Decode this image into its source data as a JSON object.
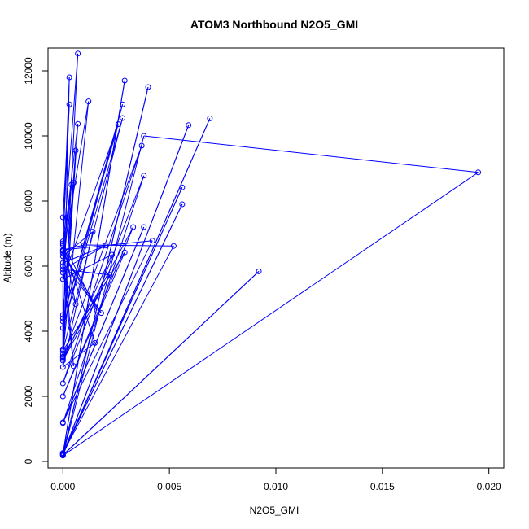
{
  "chart_data": {
    "type": "line",
    "title": "ATOM3 Northbound N2O5_GMI",
    "xlabel": "N2O5_GMI",
    "ylabel": "Altitude (m)",
    "xlim": [
      -0.0007,
      0.0207
    ],
    "ylim": [
      -200,
      12700
    ],
    "x_ticks": [
      0.0,
      0.005,
      0.01,
      0.015,
      0.02
    ],
    "x_tick_labels": [
      "0.000",
      "0.005",
      "0.010",
      "0.015",
      "0.020"
    ],
    "y_ticks": [
      0,
      2000,
      4000,
      6000,
      8000,
      10000,
      12000
    ],
    "y_tick_labels": [
      "0",
      "2000",
      "4000",
      "6000",
      "8000",
      "10000",
      "12000"
    ],
    "grid": false,
    "series_color": "#0000ff",
    "points": [
      [
        0.0,
        180
      ],
      [
        0.0195,
        8880
      ],
      [
        0.0038,
        10000
      ],
      [
        0.0,
        190
      ],
      [
        0.0092,
        5840
      ],
      [
        0.0,
        200
      ],
      [
        0.0069,
        10540
      ],
      [
        0.0,
        210
      ],
      [
        0.0059,
        10330
      ],
      [
        0.0,
        220
      ],
      [
        0.004,
        11500
      ],
      [
        0.0,
        240
      ],
      [
        0.0029,
        11700
      ],
      [
        0.0,
        230
      ],
      [
        0.0056,
        8420
      ],
      [
        0.0,
        250
      ],
      [
        0.0056,
        7900
      ],
      [
        0.0,
        260
      ],
      [
        0.0052,
        6620
      ],
      [
        0.001,
        6650
      ],
      [
        0.0,
        6500
      ],
      [
        0.0042,
        6780
      ],
      [
        0.0,
        1200
      ],
      [
        0.0038,
        7200
      ],
      [
        0.0,
        1180
      ],
      [
        0.0038,
        8780
      ],
      [
        0.0,
        2400
      ],
      [
        0.0037,
        9700
      ],
      [
        0.0,
        3200
      ],
      [
        0.0033,
        7200
      ],
      [
        0.0,
        2000
      ],
      [
        0.0029,
        6420
      ],
      [
        0.0,
        3400
      ],
      [
        0.0028,
        10550
      ],
      [
        0.0,
        4100
      ],
      [
        0.0028,
        10970
      ],
      [
        0.0,
        4400
      ],
      [
        0.0026,
        10360
      ],
      [
        0.0,
        5600
      ],
      [
        0.0023,
        6350
      ],
      [
        0.0,
        3100
      ],
      [
        0.0022,
        5730
      ],
      [
        0.0,
        5900
      ],
      [
        0.002,
        6630
      ],
      [
        0.0,
        6100
      ],
      [
        0.0018,
        4560
      ],
      [
        0.0,
        6400
      ],
      [
        0.0016,
        4640
      ],
      [
        0.0,
        6700
      ],
      [
        0.0015,
        3640
      ],
      [
        0.0,
        2900
      ],
      [
        0.0014,
        7060
      ],
      [
        0.0,
        6300
      ],
      [
        0.0012,
        11060
      ],
      [
        0.0,
        3300
      ],
      [
        0.0007,
        10370
      ],
      [
        0.0,
        6460
      ],
      [
        0.0007,
        12530
      ],
      [
        0.0,
        3450
      ],
      [
        0.0006,
        9550
      ],
      [
        0.0,
        4500
      ],
      [
        0.0005,
        8560
      ],
      [
        0.0,
        3220
      ],
      [
        0.0003,
        11800
      ],
      [
        0.0,
        6650
      ],
      [
        0.0003,
        10970
      ],
      [
        0.0,
        7500
      ],
      [
        0.0002,
        7490
      ],
      [
        0.0,
        6000
      ],
      [
        0.0005,
        2930
      ],
      [
        0.0,
        6760
      ],
      [
        0.0006,
        4830
      ],
      [
        0.0,
        5800
      ],
      [
        0.0004,
        8500
      ],
      [
        0.0,
        6480
      ],
      [
        0.0,
        3150
      ],
      [
        0.0,
        4300
      ]
    ]
  }
}
